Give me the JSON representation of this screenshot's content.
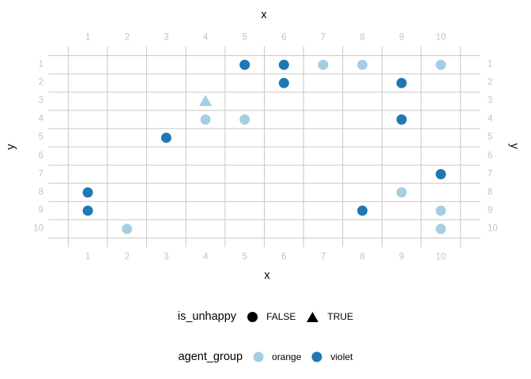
{
  "chart_data": {
    "type": "scatter",
    "title": "",
    "x": {
      "title": "x",
      "ticks": [
        1,
        2,
        3,
        4,
        5,
        6,
        7,
        8,
        9,
        10
      ],
      "tick_positions": [
        "top",
        "bottom"
      ],
      "xlim": [
        1,
        10
      ]
    },
    "y": {
      "title": "y",
      "ticks": [
        1,
        2,
        3,
        4,
        5,
        6,
        7,
        8,
        9,
        10
      ],
      "tick_positions": [
        "left",
        "right"
      ],
      "ylim": [
        1,
        10
      ],
      "direction": "reversed (1 at top, 10 at bottom)"
    },
    "grid": "gray lines between categories (at half positions), white panel background",
    "legend_position": "bottom",
    "groups": {
      "orange": "#A6CEE3",
      "violet": "#1F78B4"
    },
    "shape_encoding": {
      "FALSE": "circle",
      "TRUE": "triangle"
    },
    "points": [
      {
        "x": 5,
        "y": 1,
        "agent_group": "violet",
        "is_unhappy": false
      },
      {
        "x": 6,
        "y": 1,
        "agent_group": "violet",
        "is_unhappy": false
      },
      {
        "x": 7,
        "y": 1,
        "agent_group": "orange",
        "is_unhappy": false
      },
      {
        "x": 8,
        "y": 1,
        "agent_group": "orange",
        "is_unhappy": false
      },
      {
        "x": 10,
        "y": 1,
        "agent_group": "orange",
        "is_unhappy": false
      },
      {
        "x": 6,
        "y": 2,
        "agent_group": "violet",
        "is_unhappy": false
      },
      {
        "x": 9,
        "y": 2,
        "agent_group": "violet",
        "is_unhappy": false
      },
      {
        "x": 4,
        "y": 3,
        "agent_group": "orange",
        "is_unhappy": true
      },
      {
        "x": 4,
        "y": 4,
        "agent_group": "orange",
        "is_unhappy": false
      },
      {
        "x": 5,
        "y": 4,
        "agent_group": "orange",
        "is_unhappy": false
      },
      {
        "x": 9,
        "y": 4,
        "agent_group": "violet",
        "is_unhappy": false
      },
      {
        "x": 3,
        "y": 5,
        "agent_group": "violet",
        "is_unhappy": false
      },
      {
        "x": 10,
        "y": 7,
        "agent_group": "violet",
        "is_unhappy": false
      },
      {
        "x": 1,
        "y": 8,
        "agent_group": "violet",
        "is_unhappy": false
      },
      {
        "x": 9,
        "y": 8,
        "agent_group": "orange",
        "is_unhappy": false
      },
      {
        "x": 1,
        "y": 9,
        "agent_group": "violet",
        "is_unhappy": false
      },
      {
        "x": 8,
        "y": 9,
        "agent_group": "violet",
        "is_unhappy": false
      },
      {
        "x": 10,
        "y": 9,
        "agent_group": "orange",
        "is_unhappy": false
      },
      {
        "x": 2,
        "y": 10,
        "agent_group": "orange",
        "is_unhappy": false
      },
      {
        "x": 10,
        "y": 10,
        "agent_group": "orange",
        "is_unhappy": false
      }
    ],
    "legends": [
      {
        "title": "is_unhappy",
        "items": [
          {
            "label": "FALSE",
            "shape": "circle",
            "color": "#000000"
          },
          {
            "label": "TRUE",
            "shape": "triangle",
            "color": "#000000"
          }
        ]
      },
      {
        "title": "agent_group",
        "items": [
          {
            "label": "orange",
            "shape": "circle",
            "color": "#A6CEE3"
          },
          {
            "label": "violet",
            "shape": "circle",
            "color": "#1F78B4"
          }
        ]
      }
    ],
    "style": {
      "grid_color": "#c8c8c8",
      "tick_label_color": "#c3c3c3",
      "axis_title_color": "#000000",
      "background": "#ffffff"
    }
  }
}
